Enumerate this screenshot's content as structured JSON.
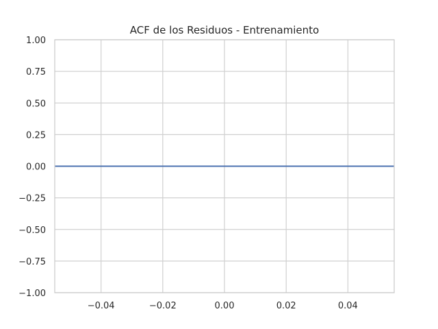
{
  "chart_data": {
    "type": "line",
    "title": "ACF de los Residuos - Entrenamiento",
    "xlabel": "",
    "ylabel": "",
    "xlim": [
      -0.055,
      0.055
    ],
    "ylim": [
      -1.0,
      1.0
    ],
    "xticks": [
      -0.04,
      -0.02,
      0.0,
      0.02,
      0.04
    ],
    "xtick_labels": [
      "−0.04",
      "−0.02",
      "0.00",
      "0.02",
      "0.04"
    ],
    "yticks": [
      1.0,
      0.75,
      0.5,
      0.25,
      0.0,
      -0.25,
      -0.5,
      -0.75,
      -1.0
    ],
    "ytick_labels": [
      "1.00",
      "0.75",
      "0.50",
      "0.25",
      "0.00",
      "−0.25",
      "−0.50",
      "−0.75",
      "−1.00"
    ],
    "grid": true,
    "legend": "none",
    "series": [
      {
        "color": "#4c72b0",
        "x": [
          -0.055,
          0.055
        ],
        "y": [
          0.0,
          0.0
        ]
      }
    ]
  }
}
